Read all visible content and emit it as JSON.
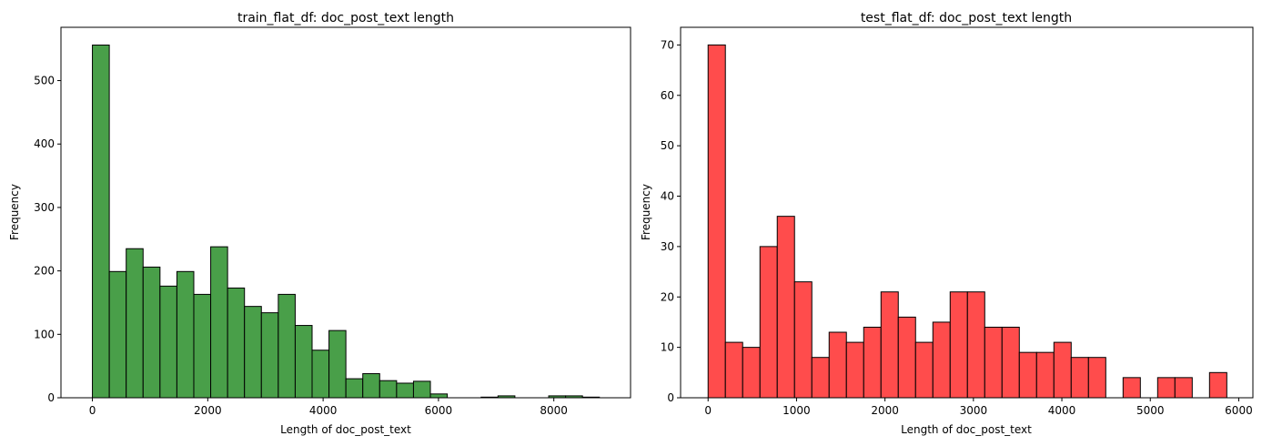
{
  "chart_data": [
    {
      "type": "bar",
      "title": "train_flat_df: doc_post_text length",
      "xlabel": "Length of doc_post_text",
      "ylabel": "Frequency",
      "xlim": [
        -545,
        9330
      ],
      "ylim": [
        0,
        584
      ],
      "xticks": [
        0,
        2000,
        4000,
        6000,
        8000
      ],
      "yticks": [
        0,
        100,
        200,
        300,
        400,
        500
      ],
      "xtick_labels": [
        "0",
        "2000",
        "4000",
        "6000",
        "8000"
      ],
      "ytick_labels": [
        "0",
        "100",
        "200",
        "300",
        "400",
        "500"
      ],
      "grid": false,
      "color": "#499f49",
      "edge_color": "#000000",
      "bin_start": 0,
      "bin_width": 293,
      "values": [
        556,
        199,
        235,
        206,
        176,
        199,
        163,
        238,
        173,
        144,
        134,
        163,
        114,
        75,
        106,
        30,
        38,
        27,
        23,
        26,
        6,
        0,
        0,
        1,
        3,
        0,
        0,
        3,
        3,
        1
      ]
    },
    {
      "type": "bar",
      "title": "test_flat_df: doc_post_text length",
      "xlabel": "Length of doc_post_text",
      "ylabel": "Frequency",
      "xlim": [
        -311,
        6160
      ],
      "ylim": [
        0,
        73.5
      ],
      "xticks": [
        0,
        1000,
        2000,
        3000,
        4000,
        5000,
        6000
      ],
      "yticks": [
        0,
        10,
        20,
        30,
        40,
        50,
        60,
        70
      ],
      "xtick_labels": [
        "0",
        "1000",
        "2000",
        "3000",
        "4000",
        "5000",
        "6000"
      ],
      "ytick_labels": [
        "0",
        "10",
        "20",
        "30",
        "40",
        "50",
        "60",
        "70"
      ],
      "grid": false,
      "color": "#ff4c4c",
      "edge_color": "#000000",
      "bin_start": 0,
      "bin_width": 195.5,
      "values": [
        70,
        11,
        10,
        30,
        36,
        23,
        8,
        13,
        11,
        14,
        21,
        16,
        11,
        15,
        21,
        21,
        14,
        14,
        9,
        9,
        11,
        8,
        8,
        0,
        4,
        0,
        4,
        4,
        0,
        5
      ]
    }
  ]
}
